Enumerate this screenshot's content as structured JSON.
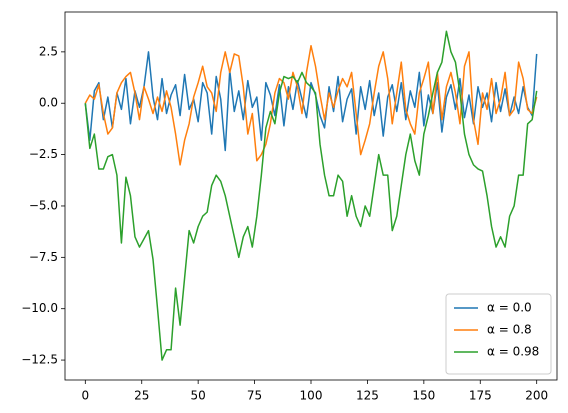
{
  "chart_data": {
    "type": "line",
    "x": [
      0,
      2,
      4,
      6,
      8,
      10,
      12,
      14,
      16,
      18,
      20,
      22,
      24,
      26,
      28,
      30,
      32,
      34,
      36,
      38,
      40,
      42,
      44,
      46,
      48,
      50,
      52,
      54,
      56,
      58,
      60,
      62,
      64,
      66,
      68,
      70,
      72,
      74,
      76,
      78,
      80,
      82,
      84,
      86,
      88,
      90,
      92,
      94,
      96,
      98,
      100,
      102,
      104,
      106,
      108,
      110,
      112,
      114,
      116,
      118,
      120,
      122,
      124,
      126,
      128,
      130,
      132,
      134,
      136,
      138,
      140,
      142,
      144,
      146,
      148,
      150,
      152,
      154,
      156,
      158,
      160,
      162,
      164,
      166,
      168,
      170,
      172,
      174,
      176,
      178,
      180,
      182,
      184,
      186,
      188,
      190,
      192,
      194,
      196,
      198,
      200
    ],
    "series": [
      {
        "name": "α = 0.0",
        "color": "#1f77b4",
        "values": [
          0,
          -1.8,
          0.6,
          1.0,
          -0.8,
          0.3,
          -1.2,
          0.5,
          -0.3,
          1.2,
          -1.0,
          0.6,
          -0.2,
          0.8,
          2.5,
          0.3,
          -0.8,
          1.2,
          -0.5,
          0.4,
          0.9,
          -0.6,
          1.4,
          -0.3,
          0.2,
          -0.9,
          1.0,
          0.5,
          -1.5,
          1.3,
          0.2,
          -2.3,
          1.6,
          -0.4,
          0.6,
          -0.8,
          1.1,
          -0.2,
          0.3,
          -1.8,
          1.0,
          0.4,
          -0.6,
          0.9,
          -1.1,
          0.8,
          -0.3,
          1.1,
          0.2,
          -0.7,
          1.0,
          0.4,
          -0.6,
          -1.2,
          0.8,
          -0.4,
          1.3,
          -0.9,
          0.2,
          0.7,
          -1.5,
          0.8,
          -0.3,
          1.1,
          -0.6,
          0.5,
          -1.6,
          0.3,
          0.9,
          -0.4,
          1.0,
          -0.8,
          0.6,
          -0.2,
          1.5,
          -1.1,
          0.4,
          -0.5,
          1.0,
          -1.4,
          0.3,
          0.9,
          -0.3,
          1.2,
          -0.7,
          0.4,
          -1.0,
          0.8,
          -0.2,
          0.5,
          -0.9,
          1.0,
          -0.4,
          0.7,
          -0.6,
          0.3,
          -0.5,
          0.8,
          -0.2,
          -0.6,
          2.4
        ]
      },
      {
        "name": "α = 0.8",
        "color": "#ff7f0e",
        "values": [
          0,
          0.4,
          0.2,
          0.9,
          -0.5,
          -1.5,
          -1.2,
          0.5,
          1.0,
          1.3,
          1.5,
          0.5,
          -0.8,
          0.8,
          0.2,
          -0.5,
          0.3,
          -0.4,
          0.6,
          -0.2,
          -1.5,
          -3.0,
          -1.8,
          -1.0,
          0.3,
          1.0,
          1.8,
          0.8,
          0.5,
          -0.4,
          1.5,
          2.5,
          1.5,
          2.4,
          2.3,
          0.8,
          -1.5,
          -0.5,
          -2.8,
          -2.5,
          -2.0,
          -1.0,
          0.5,
          1.2,
          1.0,
          0.2,
          1.5,
          0.8,
          -0.5,
          1.5,
          2.8,
          1.8,
          0.4,
          -0.8,
          0.5,
          -0.2,
          0.6,
          1.2,
          0.8,
          1.5,
          -0.5,
          -2.5,
          -1.8,
          -1.0,
          0.5,
          1.8,
          2.5,
          1.2,
          -1.0,
          0.5,
          2.0,
          -0.3,
          -1.0,
          -1.5,
          0.5,
          1.2,
          2.0,
          -0.5,
          1.5,
          -0.8,
          0.8,
          1.5,
          0.5,
          -1.0,
          1.8,
          2.5,
          -0.8,
          -2.0,
          0.5,
          -0.3,
          1.2,
          -0.5,
          0.2,
          1.5,
          -0.6,
          -0.3,
          2.0,
          1.2,
          -0.3,
          -0.5,
          0.3
        ]
      },
      {
        "name": "α = 0.98",
        "color": "#2ca02c",
        "values": [
          0,
          -2.2,
          -1.5,
          -3.2,
          -3.2,
          -2.6,
          -2.5,
          -3.5,
          -6.8,
          -3.6,
          -4.5,
          -6.5,
          -7.0,
          -6.6,
          -6.2,
          -7.6,
          -10.0,
          -12.5,
          -12.0,
          -12.0,
          -9.0,
          -10.8,
          -8.5,
          -6.2,
          -6.8,
          -6.0,
          -5.5,
          -5.3,
          -4.0,
          -3.5,
          -3.8,
          -4.5,
          -5.5,
          -6.5,
          -7.5,
          -6.5,
          -6.0,
          -7.0,
          -5.5,
          -3.5,
          -1.2,
          -0.4,
          -1.0,
          0.5,
          1.3,
          1.2,
          1.3,
          1.0,
          1.5,
          1.0,
          0.8,
          0.5,
          -2.0,
          -3.5,
          -4.5,
          -4.5,
          -3.5,
          -3.8,
          -5.5,
          -4.5,
          -5.5,
          -6.0,
          -5.0,
          -5.5,
          -4.0,
          -2.5,
          -3.5,
          -3.5,
          -6.2,
          -5.5,
          -4.0,
          -2.5,
          -1.5,
          -2.8,
          -3.5,
          -1.5,
          -0.6,
          0.5,
          1.5,
          2.0,
          3.5,
          2.5,
          2.0,
          0.5,
          -1.5,
          -2.5,
          -3.0,
          -3.2,
          -3.3,
          -4.5,
          -6.0,
          -7.0,
          -6.5,
          -7.0,
          -5.5,
          -5.0,
          -3.5,
          -3.5,
          -1.0,
          -0.8,
          0.6
        ]
      }
    ],
    "xlim": [
      -9,
      209
    ],
    "ylim": [
      -13.47,
      4.44
    ],
    "xticks": [
      0,
      25,
      50,
      75,
      100,
      125,
      150,
      175,
      200
    ],
    "yticks": [
      {
        "value": -12.5,
        "label": "−12.5"
      },
      {
        "value": -10,
        "label": "−10.0"
      },
      {
        "value": -7.5,
        "label": "−7.5"
      },
      {
        "value": -5,
        "label": "−5.0"
      },
      {
        "value": -2.5,
        "label": "−2.5"
      },
      {
        "value": 0,
        "label": "0.0"
      },
      {
        "value": 2.5,
        "label": "2.5"
      }
    ],
    "legend": "lower right",
    "grid": false
  }
}
